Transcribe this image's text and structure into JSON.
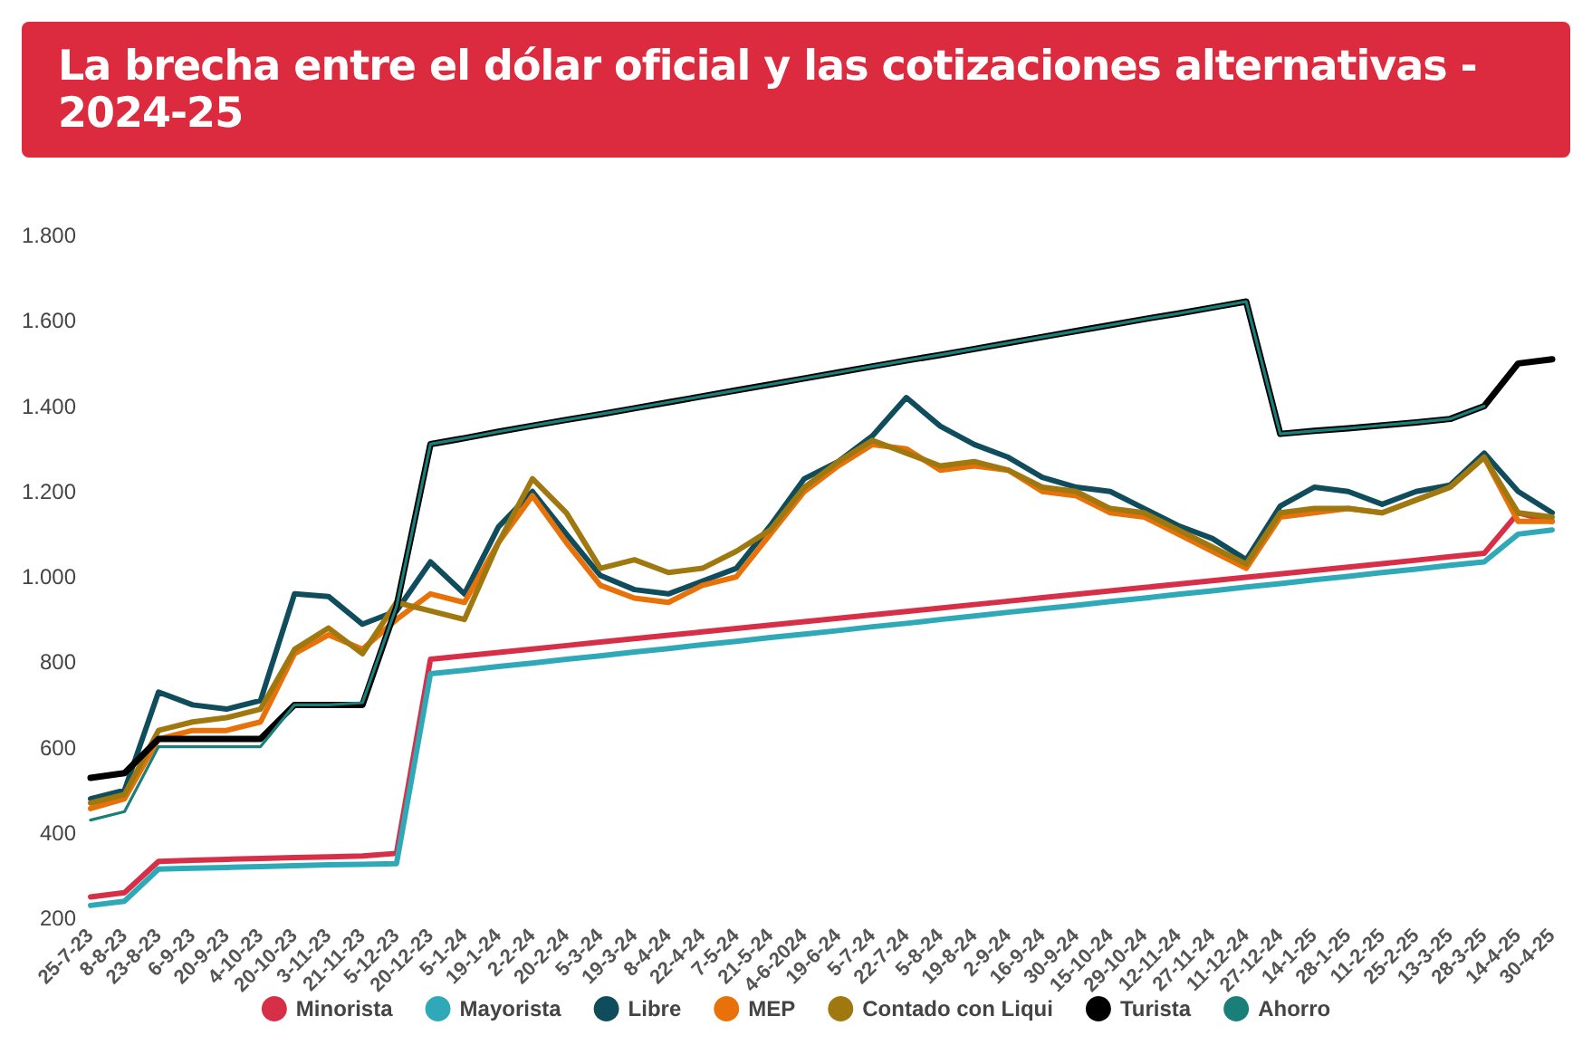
{
  "chart_data": {
    "type": "line",
    "title": "La brecha entre el dólar oficial y las cotizaciones alternativas - 2024-25",
    "categories": [
      "25-7-23",
      "8-8-23",
      "23-8-23",
      "6-9-23",
      "20-9-23",
      "4-10-23",
      "20-10-23",
      "3-11-23",
      "21-11-23",
      "5-12-23",
      "20-12-23",
      "5-1-24",
      "19-1-24",
      "2-2-24",
      "20-2-24",
      "5-3-24",
      "19-3-24",
      "8-4-24",
      "22-4-24",
      "7-5-24",
      "21-5-24",
      "4-6-2024",
      "19-6-24",
      "5-7-24",
      "22-7-24",
      "5-8-24",
      "19-8-24",
      "2-9-24",
      "16-9-24",
      "30-9-24",
      "15-10-24",
      "29-10-24",
      "12-11-24",
      "27-11-24",
      "11-12-24",
      "27-12-24",
      "14-1-25",
      "28-1-25",
      "11-2-25",
      "25-2-25",
      "13-3-25",
      "28-3-25",
      "14-4-25",
      "30-4-25"
    ],
    "series": [
      {
        "name": "Minorista",
        "color": "#d62f47",
        "values": [
          250,
          260,
          333,
          336,
          338,
          340,
          342,
          344,
          346,
          352,
          807,
          815,
          823,
          831,
          839,
          847,
          855,
          863,
          871,
          879,
          887,
          895,
          903,
          911,
          919,
          927,
          935,
          943,
          951,
          959,
          967,
          975,
          983,
          991,
          999,
          1007,
          1015,
          1023,
          1031,
          1039,
          1047,
          1055,
          1150,
          1130
        ]
      },
      {
        "name": "Mayorista",
        "color": "#2fa9b8",
        "values": [
          230,
          240,
          315,
          317,
          319,
          321,
          323,
          325,
          326,
          328,
          773,
          781,
          790,
          798,
          807,
          815,
          824,
          832,
          841,
          849,
          858,
          866,
          874,
          883,
          891,
          900,
          908,
          917,
          925,
          933,
          942,
          950,
          959,
          967,
          976,
          984,
          993,
          1001,
          1010,
          1018,
          1027,
          1035,
          1100,
          1110
        ]
      },
      {
        "name": "Libre",
        "color": "#0f4c5c",
        "values": [
          480,
          500,
          730,
          700,
          690,
          710,
          960,
          954,
          889,
          920,
          1035,
          960,
          1117,
          1200,
          1100,
          1003,
          970,
          960,
          990,
          1020,
          1120,
          1230,
          1270,
          1330,
          1420,
          1353,
          1310,
          1280,
          1233,
          1210,
          1200,
          1160,
          1120,
          1090,
          1040,
          1166,
          1210,
          1200,
          1170,
          1200,
          1215,
          1290,
          1200,
          1150
        ]
      },
      {
        "name": "MEP",
        "color": "#e8710a",
        "values": [
          457,
          480,
          620,
          640,
          640,
          660,
          820,
          864,
          830,
          900,
          960,
          940,
          1080,
          1190,
          1080,
          980,
          950,
          940,
          980,
          1000,
          1100,
          1200,
          1260,
          1310,
          1300,
          1250,
          1260,
          1250,
          1200,
          1190,
          1150,
          1140,
          1100,
          1060,
          1020,
          1140,
          1150,
          1160,
          1150,
          1180,
          1210,
          1280,
          1130,
          1130
        ]
      },
      {
        "name": "Contado con Liqui",
        "color": "#a07810",
        "values": [
          470,
          490,
          640,
          660,
          670,
          690,
          830,
          880,
          820,
          940,
          920,
          900,
          1080,
          1230,
          1150,
          1020,
          1040,
          1010,
          1020,
          1060,
          1110,
          1210,
          1270,
          1320,
          1290,
          1260,
          1270,
          1250,
          1210,
          1200,
          1160,
          1150,
          1110,
          1070,
          1030,
          1150,
          1160,
          1160,
          1150,
          1180,
          1210,
          1280,
          1150,
          1140
        ]
      },
      {
        "name": "Turista",
        "color": "#000000",
        "values": [
          529,
          540,
          620,
          620,
          620,
          620,
          700,
          700,
          700,
          930,
          1311,
          1325,
          1340,
          1354,
          1368,
          1381,
          1395,
          1409,
          1423,
          1437,
          1451,
          1465,
          1479,
          1493,
          1507,
          1520,
          1534,
          1548,
          1562,
          1576,
          1590,
          1604,
          1617,
          1631,
          1645,
          1335,
          1342,
          1348,
          1355,
          1362,
          1370,
          1400,
          1500,
          1510
        ]
      },
      {
        "name": "Ahorro",
        "color": "#1a7f78",
        "values": [
          430,
          450,
          602,
          602,
          602,
          602,
          700,
          700,
          705,
          930,
          1311,
          1325,
          1340,
          1354,
          1368,
          1381,
          1395,
          1409,
          1423,
          1437,
          1451,
          1465,
          1479,
          1493,
          1507,
          1520,
          1534,
          1548,
          1562,
          1576,
          1590,
          1604,
          1617,
          1631,
          1645,
          1335,
          1342,
          1348,
          1355,
          1362,
          1370,
          1400,
          null,
          null
        ]
      }
    ],
    "ylim": [
      200,
      1800
    ],
    "yticks": [
      {
        "value": 200,
        "label": "200"
      },
      {
        "value": 400,
        "label": "400"
      },
      {
        "value": 600,
        "label": "600"
      },
      {
        "value": 800,
        "label": "800"
      },
      {
        "value": 1000,
        "label": "1.000"
      },
      {
        "value": 1200,
        "label": "1.200"
      },
      {
        "value": 1400,
        "label": "1.400"
      },
      {
        "value": 1600,
        "label": "1.600"
      },
      {
        "value": 1800,
        "label": "1.800"
      }
    ],
    "grid": false,
    "legend": "bottom",
    "marker": "none",
    "line_style": "solid"
  }
}
